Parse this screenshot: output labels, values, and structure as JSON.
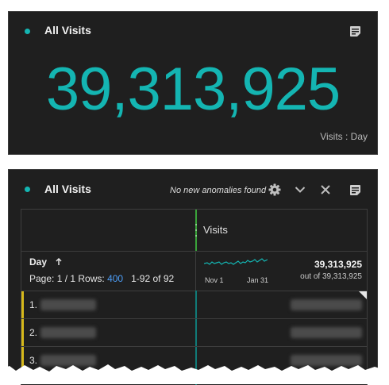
{
  "summary_panel": {
    "title": "All Visits",
    "value": "39,313,925",
    "subtitle": "Visits : Day"
  },
  "table_panel": {
    "title": "All Visits",
    "anomaly_text": "No new anomalies found",
    "column_header": "Visits",
    "dimension": {
      "label": "Day",
      "sort_icon": "sort-ascending-arrow-icon",
      "page_label": "Page: 1 / 1",
      "rows_label": "Rows:",
      "rows_value": "400",
      "range_label": "1-92 of 92"
    },
    "sparkline": {
      "x_start": "Nov 1",
      "x_end": "Jan 31"
    },
    "total": {
      "value": "39,313,925",
      "out_of": "out of 39,313,925"
    },
    "rows": [
      {
        "index": "1."
      },
      {
        "index": "2."
      },
      {
        "index": "3."
      }
    ]
  },
  "colors": {
    "accent_teal": "#14b5b2",
    "divider_green": "#3aa43a",
    "row_marker_yellow": "#d6b81a",
    "link_blue": "#4d9ef8",
    "panel_bg": "#1f1f1f"
  },
  "icons": [
    "status-dot-icon",
    "notes-icon",
    "gear-icon",
    "chevron-down-icon",
    "close-icon",
    "drag-handle-icon"
  ]
}
